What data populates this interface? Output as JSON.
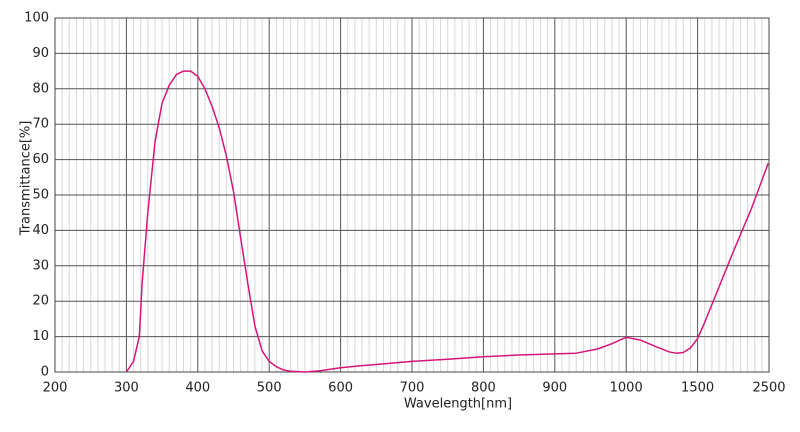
{
  "chart_data": {
    "type": "line",
    "x_label": "Wavelength[nm]",
    "y_label": "Transmittance[%]",
    "xticks": [
      200,
      300,
      400,
      500,
      600,
      700,
      800,
      900,
      1000,
      1500,
      2500
    ],
    "xlim": [
      200,
      2500
    ],
    "ylim": [
      0,
      100
    ],
    "yticks": [
      0,
      10,
      20,
      30,
      40,
      50,
      60,
      70,
      80,
      90,
      100
    ],
    "grid": true,
    "series": [
      {
        "color": "#d6157a",
        "x": [
          300,
          310,
          318,
          322,
          330,
          340,
          350,
          360,
          370,
          380,
          390,
          400,
          410,
          420,
          430,
          440,
          450,
          460,
          470,
          480,
          490,
          500,
          510,
          520,
          530,
          550,
          570,
          600,
          630,
          660,
          700,
          750,
          800,
          850,
          900,
          930,
          960,
          980,
          1000,
          1100,
          1200,
          1300,
          1350,
          1400,
          1450,
          1500,
          1600,
          1800,
          2000,
          2250,
          2490
        ],
        "values": [
          0,
          3,
          10,
          25,
          45,
          65,
          76,
          81,
          84,
          85,
          85,
          83.5,
          80,
          75,
          69,
          61,
          51,
          38,
          25,
          13,
          6,
          3,
          1.5,
          0.6,
          0.2,
          0,
          0.3,
          1.2,
          1.8,
          2.3,
          3,
          3.6,
          4.3,
          4.8,
          5.1,
          5.3,
          6.5,
          8,
          9.8,
          9,
          7.3,
          5.7,
          5.3,
          5.5,
          6.8,
          9.5,
          14,
          24,
          34,
          46,
          59
        ]
      }
    ]
  }
}
